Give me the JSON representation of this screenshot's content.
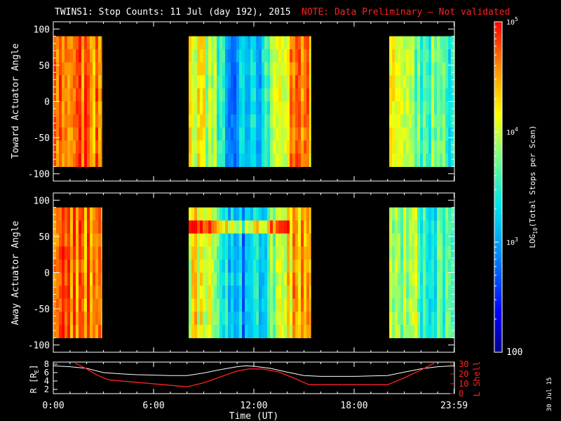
{
  "title": "TWINS1: Stop Counts: 11 Jul (day 192), 2015",
  "note": "NOTE: Data Preliminary — Not validated",
  "stamp": "30 Jul 15",
  "colors": {
    "note": "#ff2020",
    "lshell": "#ff2020",
    "r_line": "#ffffff",
    "background": "#000000"
  },
  "chart_data": [
    {
      "type": "heatmap",
      "name": "toward",
      "ylabel": "Toward Actuator Angle",
      "ylim": [
        -110,
        110
      ],
      "yticks": [
        100,
        50,
        0,
        -50,
        -100
      ],
      "y_extent": [
        -90,
        90
      ],
      "x_range_hours": [
        0,
        24
      ],
      "data_blocks_hours": [
        [
          0,
          2.9
        ],
        [
          8.1,
          15.4
        ],
        [
          20.1,
          24
        ]
      ]
    },
    {
      "type": "heatmap",
      "name": "away",
      "ylabel": "Away Actuator Angle",
      "ylim": [
        -110,
        110
      ],
      "yticks": [
        100,
        50,
        0,
        -50,
        -100
      ],
      "y_extent": [
        -90,
        90
      ],
      "x_range_hours": [
        0,
        24
      ],
      "data_blocks_hours": [
        [
          0,
          2.9
        ],
        [
          8.1,
          15.4
        ],
        [
          20.1,
          24
        ]
      ]
    },
    {
      "type": "line",
      "name": "orbit",
      "xlabel": "Time (UT)",
      "xticks": [
        "0:00",
        "6:00",
        "12:00",
        "18:00",
        "23:59"
      ],
      "xtick_hours": [
        0,
        6,
        12,
        18,
        23.98
      ],
      "left_axis": {
        "label_main": "R [R",
        "label_sub": "E",
        "label_end": "]",
        "ylim": [
          1,
          8.5
        ],
        "ticks": [
          8,
          6,
          4,
          2
        ]
      },
      "right_axis": {
        "label": "L Shell",
        "ylim": [
          0,
          32
        ],
        "ticks": [
          30,
          20,
          10,
          0
        ]
      },
      "r_series": {
        "hours": [
          0,
          1,
          2,
          3,
          4,
          5,
          6,
          7,
          8,
          9,
          10,
          11,
          11.5,
          12,
          13,
          14,
          15,
          16,
          17,
          18,
          19,
          20,
          21,
          22,
          23,
          24
        ],
        "values": [
          7.6,
          7.4,
          7.0,
          6.0,
          5.7,
          5.5,
          5.4,
          5.3,
          5.3,
          5.9,
          6.7,
          7.4,
          7.6,
          7.5,
          7.0,
          6.1,
          5.3,
          5.1,
          5.1,
          5.1,
          5.2,
          5.3,
          6.1,
          6.9,
          7.4,
          7.6
        ]
      },
      "l_series": {
        "hours": [
          1.3,
          2.0,
          2.6,
          3.3,
          8.0,
          9.0,
          10.0,
          11.0,
          11.7,
          12.5,
          13.5,
          14.5,
          15.3,
          20.0,
          21.0,
          22.0,
          22.8
        ],
        "values": [
          31,
          25,
          19,
          14,
          7,
          11,
          17,
          23,
          25,
          25,
          22,
          15,
          9,
          9,
          16,
          24,
          31
        ]
      }
    },
    {
      "type": "colorbar",
      "name": "colorscale",
      "scale": "log",
      "range": [
        100,
        100000
      ],
      "tick_labels": [
        "100",
        "10",
        "10",
        "10"
      ],
      "tick_exponents": [
        "",
        "3",
        "4",
        "5"
      ],
      "label_main": "LOG",
      "label_sub": "10",
      "label_end": "(Total Stops per Scan)"
    }
  ]
}
